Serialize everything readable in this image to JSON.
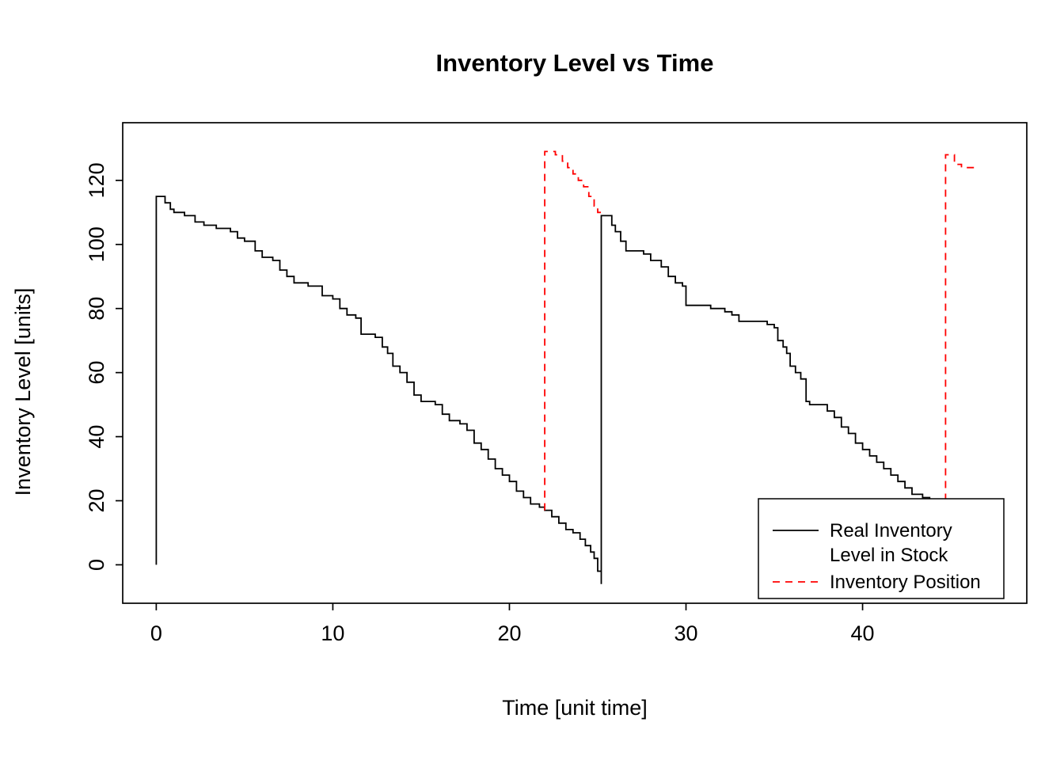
{
  "chart_data": {
    "type": "line",
    "title": "Inventory Level vs Time",
    "xlabel": "Time [unit time]",
    "ylabel": "Inventory Level [units]",
    "xlim": [
      -1.9,
      49.3
    ],
    "ylim": [
      -12,
      138
    ],
    "x_ticks": [
      0,
      10,
      20,
      30,
      40
    ],
    "y_ticks": [
      0,
      20,
      40,
      60,
      80,
      100,
      120
    ],
    "grid": false,
    "legend_position": "bottom-right",
    "series": [
      {
        "name": "Real Inventory Level in Stock",
        "color": "#000000",
        "style": "solid",
        "step": true,
        "segments": [
          [
            [
              0,
              0
            ],
            [
              0,
              115
            ],
            [
              0.5,
              113
            ],
            [
              0.8,
              111
            ],
            [
              1.0,
              110
            ],
            [
              1.6,
              109
            ],
            [
              2.2,
              107
            ],
            [
              2.7,
              106
            ],
            [
              3.4,
              105
            ],
            [
              4.2,
              104
            ],
            [
              4.6,
              102
            ],
            [
              5.0,
              101
            ],
            [
              5.6,
              98
            ],
            [
              6.0,
              96
            ],
            [
              6.6,
              95
            ],
            [
              7.0,
              92
            ],
            [
              7.4,
              90
            ],
            [
              7.8,
              88
            ],
            [
              8.6,
              87
            ],
            [
              9.4,
              84
            ],
            [
              10.0,
              83
            ],
            [
              10.4,
              80
            ],
            [
              10.8,
              78
            ],
            [
              11.3,
              77
            ],
            [
              11.6,
              72
            ],
            [
              12.4,
              71
            ],
            [
              12.8,
              68
            ],
            [
              13.1,
              66
            ],
            [
              13.4,
              62
            ],
            [
              13.8,
              60
            ],
            [
              14.2,
              57
            ],
            [
              14.6,
              53
            ],
            [
              15.0,
              51
            ],
            [
              15.8,
              50
            ],
            [
              16.2,
              47
            ],
            [
              16.6,
              45
            ],
            [
              17.2,
              44
            ],
            [
              17.6,
              42
            ],
            [
              18.0,
              38
            ],
            [
              18.4,
              36
            ],
            [
              18.8,
              33
            ],
            [
              19.2,
              30
            ],
            [
              19.6,
              28
            ],
            [
              20.0,
              26
            ],
            [
              20.4,
              23
            ],
            [
              20.8,
              21
            ],
            [
              21.2,
              19
            ],
            [
              21.7,
              18
            ],
            [
              22.0,
              17
            ],
            [
              22.4,
              15
            ],
            [
              22.8,
              13
            ],
            [
              23.2,
              11
            ],
            [
              23.6,
              10
            ],
            [
              24.0,
              8
            ],
            [
              24.3,
              6
            ],
            [
              24.6,
              4
            ],
            [
              24.8,
              2
            ],
            [
              25.0,
              -2
            ],
            [
              25.2,
              -6
            ],
            [
              25.2,
              109
            ],
            [
              25.8,
              106
            ],
            [
              26.0,
              104
            ],
            [
              26.3,
              101
            ],
            [
              26.6,
              98
            ],
            [
              27.6,
              97
            ],
            [
              28.0,
              95
            ],
            [
              28.6,
              93
            ],
            [
              29.0,
              90
            ],
            [
              29.4,
              88
            ],
            [
              29.8,
              87
            ],
            [
              30.0,
              81
            ],
            [
              31.4,
              80
            ],
            [
              32.2,
              79
            ],
            [
              32.6,
              78
            ],
            [
              33.0,
              76
            ],
            [
              34.6,
              75
            ],
            [
              35.0,
              74
            ],
            [
              35.2,
              70
            ],
            [
              35.5,
              68
            ],
            [
              35.7,
              66
            ],
            [
              35.9,
              62
            ],
            [
              36.2,
              60
            ],
            [
              36.5,
              58
            ],
            [
              36.8,
              51
            ],
            [
              37.0,
              50
            ],
            [
              38.0,
              48
            ],
            [
              38.4,
              46
            ],
            [
              38.8,
              43
            ],
            [
              39.2,
              41
            ],
            [
              39.6,
              38
            ],
            [
              40.0,
              36
            ],
            [
              40.4,
              34
            ],
            [
              40.8,
              32
            ],
            [
              41.2,
              30
            ],
            [
              41.6,
              28
            ],
            [
              42.0,
              26
            ],
            [
              42.4,
              24
            ],
            [
              42.8,
              22
            ],
            [
              43.4,
              21
            ],
            [
              43.8,
              20
            ],
            [
              44.3,
              20
            ]
          ]
        ]
      },
      {
        "name": "Inventory Position",
        "color": "#FF0000",
        "style": "dashed",
        "step": true,
        "segments": [
          [
            [
              22,
              17
            ],
            [
              22,
              129
            ],
            [
              22.6,
              128
            ],
            [
              23.0,
              126
            ],
            [
              23.3,
              124
            ],
            [
              23.6,
              122
            ],
            [
              23.9,
              120
            ],
            [
              24.2,
              118
            ],
            [
              24.5,
              115
            ],
            [
              24.8,
              112
            ],
            [
              25.0,
              110
            ],
            [
              25.2,
              109
            ]
          ],
          [
            [
              44.7,
              20
            ],
            [
              44.7,
              128
            ],
            [
              45.2,
              125
            ],
            [
              45.6,
              124
            ],
            [
              46.4,
              124
            ]
          ]
        ]
      }
    ],
    "legend": {
      "items": [
        {
          "lines": [
            "Real Inventory",
            "Level in Stock"
          ],
          "color": "#000000",
          "style": "solid"
        },
        {
          "lines": [
            "Inventory Position"
          ],
          "color": "#FF0000",
          "style": "dashed"
        }
      ]
    }
  }
}
